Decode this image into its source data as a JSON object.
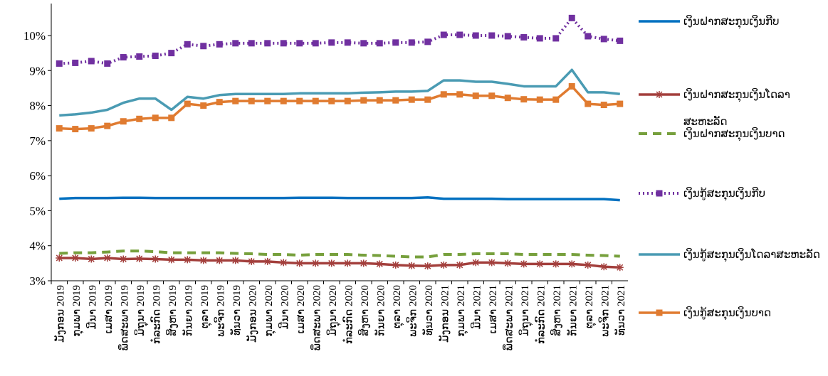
{
  "chart_data": {
    "type": "line",
    "categories": [
      "ມັງກອນ 2019",
      "ກຸມພາ 2019",
      "ມີນາ 2019",
      "ເມສາ 2019",
      "ພຶດສະພາ 2019",
      "ມິຖຸນາ 2019",
      "ກໍລະກົດ 2019",
      "ສິງຫາ 2019",
      "ກັນຍາ 2019",
      "ຕຸລາ 2019",
      "ພະຈິກ 2019",
      "ທັນວາ 2019",
      "ມັງກອນ 2020",
      "ກຸມພາ 2020",
      "ມີນາ 2020",
      "ເມສາ 2020",
      "ພຶດສະພາ 2020",
      "ມິຖຸນາ 2020",
      "ກໍລະກົດ 2020",
      "ສິງຫາ 2020",
      "ກັນຍາ 2020",
      "ຕຸລາ 2020",
      "ພະຈິກ 2020",
      "ທັນວາ 2020",
      "ມັງກອນ 2021",
      "ກຸມພາ 2021",
      "ມີນາ 2021",
      "ເມສາ 2021",
      "ພຶດສະພາ 2021",
      "ມິຖຸນາ 2021",
      "ກໍລະກົດ 2021",
      "ສິງຫາ 2021",
      "ກັນຍາ 2021",
      "ຕຸລາ 2021",
      "ພະຈິກ 2021",
      "ທັນວາ 2021"
    ],
    "series": [
      {
        "name": "ເງິນຝາກສະກຸນເງິນກີບ",
        "color": "#0070c0",
        "style": "solid",
        "marker": "none",
        "values": [
          5.34,
          5.36,
          5.36,
          5.36,
          5.37,
          5.37,
          5.36,
          5.36,
          5.36,
          5.36,
          5.36,
          5.36,
          5.36,
          5.36,
          5.36,
          5.37,
          5.37,
          5.37,
          5.36,
          5.36,
          5.36,
          5.36,
          5.36,
          5.38,
          5.34,
          5.34,
          5.34,
          5.34,
          5.33,
          5.33,
          5.33,
          5.33,
          5.33,
          5.33,
          5.33,
          5.3
        ]
      },
      {
        "name": "ເງິນຝາກສະກຸນເງິນໂດລາສະຫະລັດ",
        "color": "#a33f3c",
        "style": "solid",
        "marker": "star",
        "values": [
          3.65,
          3.65,
          3.62,
          3.65,
          3.62,
          3.63,
          3.62,
          3.6,
          3.6,
          3.58,
          3.58,
          3.58,
          3.55,
          3.55,
          3.52,
          3.5,
          3.5,
          3.5,
          3.5,
          3.5,
          3.48,
          3.45,
          3.43,
          3.42,
          3.45,
          3.45,
          3.52,
          3.52,
          3.5,
          3.48,
          3.48,
          3.48,
          3.48,
          3.45,
          3.4,
          3.38
        ]
      },
      {
        "name": "ເງິນຝາກສະກຸນເງິນບາດ",
        "color": "#77a03d",
        "style": "dash",
        "marker": "none",
        "values": [
          3.78,
          3.8,
          3.8,
          3.82,
          3.85,
          3.85,
          3.83,
          3.8,
          3.8,
          3.8,
          3.8,
          3.78,
          3.77,
          3.75,
          3.75,
          3.73,
          3.75,
          3.75,
          3.75,
          3.73,
          3.72,
          3.7,
          3.68,
          3.68,
          3.75,
          3.75,
          3.77,
          3.77,
          3.77,
          3.75,
          3.75,
          3.75,
          3.75,
          3.73,
          3.72,
          3.7
        ]
      },
      {
        "name": "ເງິນກູ້ສະກຸນເງິນກີບ",
        "color": "#7030a0",
        "style": "dot",
        "marker": "square",
        "values": [
          9.2,
          9.22,
          9.27,
          9.2,
          9.38,
          9.4,
          9.42,
          9.5,
          9.75,
          9.7,
          9.75,
          9.78,
          9.78,
          9.78,
          9.78,
          9.78,
          9.78,
          9.8,
          9.8,
          9.78,
          9.78,
          9.8,
          9.8,
          9.82,
          10.02,
          10.02,
          10.0,
          10.0,
          9.98,
          9.95,
          9.92,
          9.92,
          10.5,
          9.98,
          9.9,
          9.85
        ]
      },
      {
        "name": "ເງິນກູ້ສະກຸນເງິນໂດລາສະຫະລັດ",
        "color": "#4a9bb3",
        "style": "solid",
        "marker": "none",
        "values": [
          7.72,
          7.75,
          7.8,
          7.88,
          8.08,
          8.2,
          8.2,
          7.88,
          8.25,
          8.2,
          8.3,
          8.33,
          8.33,
          8.33,
          8.33,
          8.35,
          8.35,
          8.35,
          8.35,
          8.37,
          8.38,
          8.4,
          8.4,
          8.42,
          8.72,
          8.72,
          8.68,
          8.68,
          8.62,
          8.55,
          8.55,
          8.55,
          9.02,
          8.38,
          8.38,
          8.33
        ]
      },
      {
        "name": "ເງິນກູ້ສະກຸນເງິນບາດ",
        "color": "#e07b30",
        "style": "solid",
        "marker": "square",
        "values": [
          7.35,
          7.33,
          7.35,
          7.42,
          7.55,
          7.62,
          7.65,
          7.65,
          8.05,
          8.0,
          8.1,
          8.13,
          8.13,
          8.13,
          8.13,
          8.13,
          8.13,
          8.13,
          8.13,
          8.15,
          8.15,
          8.15,
          8.17,
          8.17,
          8.32,
          8.32,
          8.28,
          8.28,
          8.22,
          8.18,
          8.17,
          8.17,
          8.55,
          8.05,
          8.02,
          8.05
        ]
      }
    ],
    "ylim": [
      3,
      11
    ],
    "yticks": [
      {
        "value": 3,
        "label": "3%"
      },
      {
        "value": 4,
        "label": "4%"
      },
      {
        "value": 5,
        "label": "5%"
      },
      {
        "value": 6,
        "label": "6%"
      },
      {
        "value": 7,
        "label": "7%"
      },
      {
        "value": 8,
        "label": "8%"
      },
      {
        "value": 9,
        "label": "9%"
      },
      {
        "value": 10,
        "label": "10%"
      }
    ],
    "grid": false,
    "legend": "right"
  }
}
